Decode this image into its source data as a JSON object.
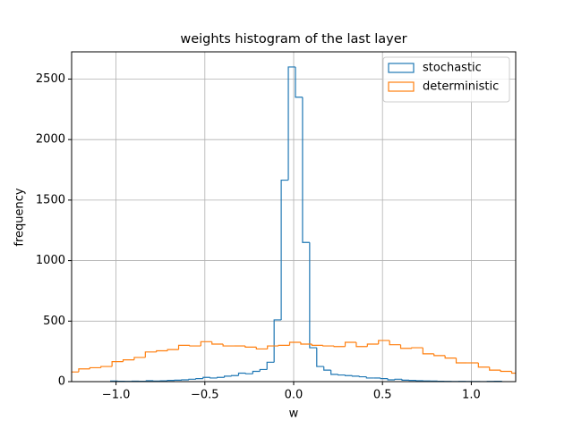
{
  "chart_data": {
    "type": "histogram",
    "title": "weights histogram of the last layer",
    "x_label": "w",
    "y_label": "frequency",
    "xlim": [
      -1.25,
      1.25
    ],
    "ylim": [
      0,
      2725
    ],
    "xticks": [
      {
        "value": -1.0,
        "label": "−1.0"
      },
      {
        "value": -0.5,
        "label": "−0.5"
      },
      {
        "value": 0.0,
        "label": "0.0"
      },
      {
        "value": 0.5,
        "label": "0.5"
      },
      {
        "value": 1.0,
        "label": "1.0"
      }
    ],
    "yticks": [
      0,
      500,
      1000,
      1500,
      2000,
      2500
    ],
    "grid": true,
    "legend": "upper right",
    "series": [
      {
        "name": "stochastic",
        "color": "#1f77b4",
        "bins": [
          -1.03,
          -0.99,
          -0.95,
          -0.91,
          -0.87,
          -0.83,
          -0.79,
          -0.75,
          -0.71,
          -0.67,
          -0.63,
          -0.59,
          -0.55,
          -0.51,
          -0.47,
          -0.43,
          -0.39,
          -0.35,
          -0.31,
          -0.27,
          -0.23,
          -0.19,
          -0.15,
          -0.11,
          -0.07,
          -0.03,
          0.01,
          0.05,
          0.09,
          0.13,
          0.17,
          0.21,
          0.25,
          0.29,
          0.33,
          0.37,
          0.41,
          0.45,
          0.49,
          0.53,
          0.57,
          0.61,
          0.65,
          0.69,
          0.73,
          0.77,
          0.81,
          0.85,
          0.89,
          0.93,
          0.97,
          1.01,
          1.05,
          1.09,
          1.13,
          1.17
        ],
        "values": [
          5,
          3,
          2,
          4,
          3,
          8,
          5,
          7,
          10,
          12,
          15,
          20,
          25,
          35,
          30,
          35,
          45,
          50,
          70,
          65,
          85,
          100,
          160,
          510,
          1665,
          2600,
          2350,
          1150,
          280,
          125,
          95,
          60,
          55,
          50,
          45,
          40,
          30,
          30,
          25,
          15,
          20,
          12,
          10,
          8,
          6,
          5,
          3,
          2,
          1,
          2,
          1,
          1,
          0,
          2,
          3
        ]
      },
      {
        "name": "deterministic",
        "color": "#ff7f0e",
        "bins": [
          -1.335,
          -1.2725,
          -1.21,
          -1.1475,
          -1.085,
          -1.0225,
          -0.96,
          -0.8975,
          -0.835,
          -0.7725,
          -0.71,
          -0.6475,
          -0.585,
          -0.5225,
          -0.46,
          -0.3975,
          -0.335,
          -0.2725,
          -0.21,
          -0.1475,
          -0.085,
          -0.0225,
          0.04,
          0.1025,
          0.165,
          0.2275,
          0.29,
          0.3525,
          0.415,
          0.4775,
          0.54,
          0.6025,
          0.665,
          0.7275,
          0.79,
          0.8525,
          0.915,
          0.9775,
          1.04,
          1.1025,
          1.165,
          1.2275,
          1.29,
          1.3525
        ],
        "values": [
          60,
          80,
          105,
          115,
          125,
          165,
          180,
          200,
          245,
          255,
          265,
          300,
          295,
          330,
          310,
          295,
          295,
          285,
          270,
          295,
          300,
          325,
          310,
          300,
          295,
          290,
          325,
          290,
          310,
          340,
          305,
          275,
          280,
          230,
          215,
          195,
          155,
          155,
          120,
          95,
          85,
          70,
          60
        ]
      }
    ]
  }
}
